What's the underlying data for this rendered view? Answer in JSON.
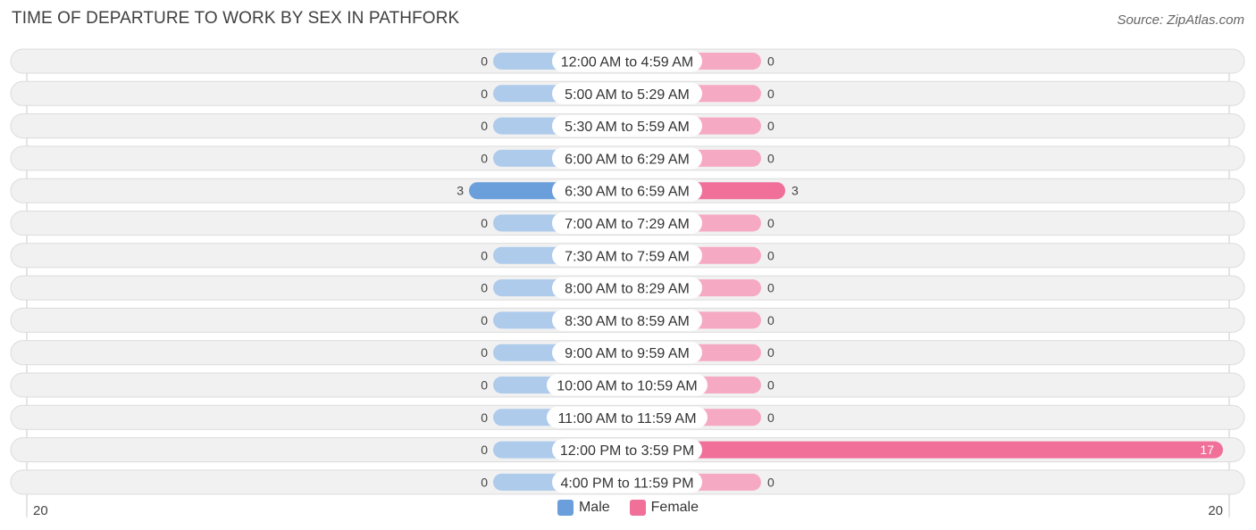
{
  "chart_data": {
    "type": "bar",
    "orientation": "horizontal-diverging",
    "title": "TIME OF DEPARTURE TO WORK BY SEX IN PATHFORK",
    "source": "Source: ZipAtlas.com",
    "categories": [
      "12:00 AM to 4:59 AM",
      "5:00 AM to 5:29 AM",
      "5:30 AM to 5:59 AM",
      "6:00 AM to 6:29 AM",
      "6:30 AM to 6:59 AM",
      "7:00 AM to 7:29 AM",
      "7:30 AM to 7:59 AM",
      "8:00 AM to 8:29 AM",
      "8:30 AM to 8:59 AM",
      "9:00 AM to 9:59 AM",
      "10:00 AM to 10:59 AM",
      "11:00 AM to 11:59 AM",
      "12:00 PM to 3:59 PM",
      "4:00 PM to 11:59 PM"
    ],
    "series": [
      {
        "name": "Male",
        "values": [
          0,
          0,
          0,
          0,
          3,
          0,
          0,
          0,
          0,
          0,
          0,
          0,
          0,
          0
        ]
      },
      {
        "name": "Female",
        "values": [
          0,
          0,
          0,
          0,
          3,
          0,
          0,
          0,
          0,
          0,
          0,
          0,
          17,
          0
        ]
      }
    ],
    "xlim": [
      -20,
      20
    ],
    "axis_labels": {
      "left": "20",
      "right": "20"
    },
    "legend": [
      "Male",
      "Female"
    ],
    "legend_position": "bottom-center",
    "colors": {
      "male_light": "#aecbeb",
      "male_strong": "#6a9fdc",
      "female_light": "#f6a9c3",
      "female_strong": "#f07099"
    }
  }
}
